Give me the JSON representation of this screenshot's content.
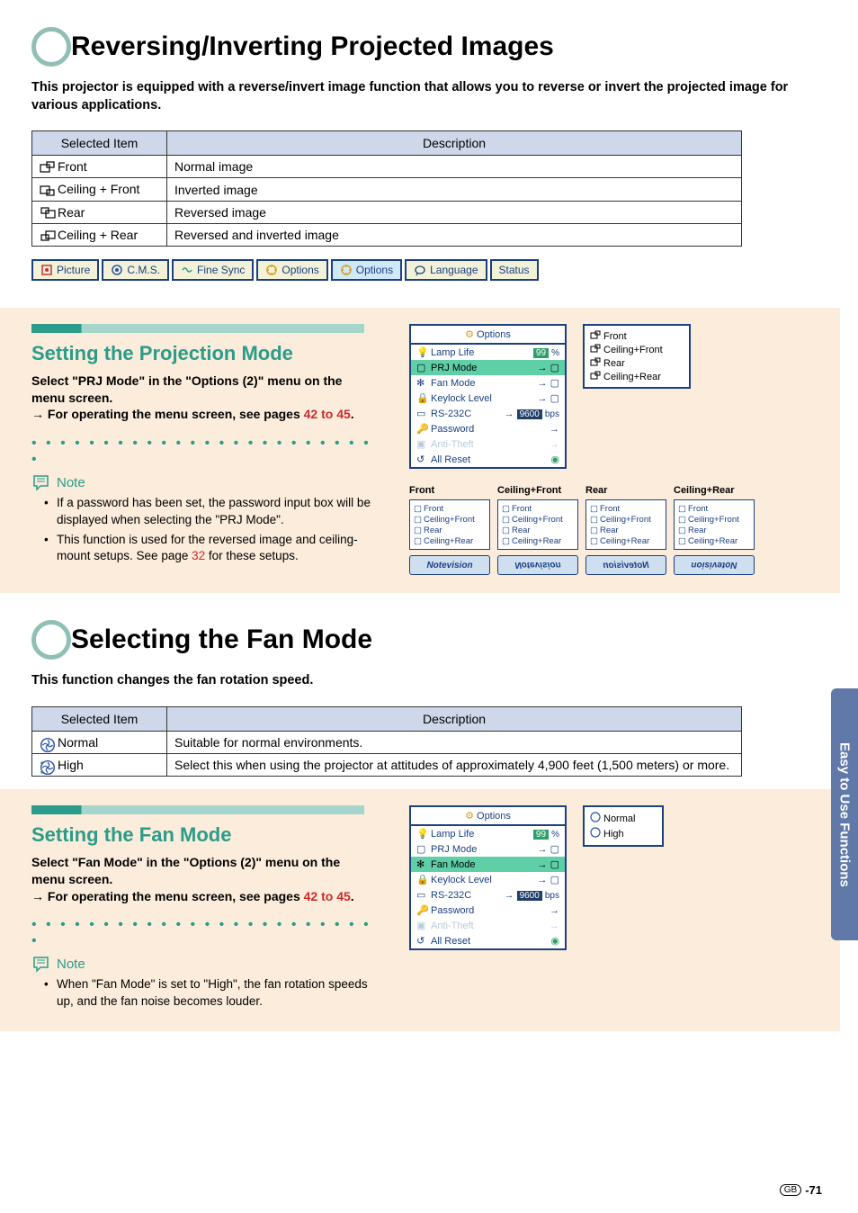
{
  "sideTab": "Easy to Use Functions",
  "pageNum": "-71",
  "gbLabel": "GB",
  "section1": {
    "title": "Reversing/Inverting Projected Images",
    "intro": "This projector is equipped with a reverse/invert image function that allows you to reverse or invert the projected image for various applications.",
    "table": {
      "headers": [
        "Selected Item",
        "Description"
      ],
      "rows": [
        {
          "item": "Front",
          "desc": "Normal image"
        },
        {
          "item": "Ceiling + Front",
          "desc": "Inverted image"
        },
        {
          "item": "Rear",
          "desc": "Reversed image"
        },
        {
          "item": "Ceiling + Rear",
          "desc": "Reversed and inverted image"
        }
      ]
    },
    "menuTabs": [
      "Picture",
      "C.M.S.",
      "Fine Sync",
      "Options",
      "Options",
      "Language",
      "Status"
    ],
    "activeTab": 4,
    "subTitle": "Setting the Projection Mode",
    "instr1": "Select \"PRJ Mode\" in the \"Options (2)\" menu on the menu screen.",
    "instr2a": "→ For operating the menu screen, see pages ",
    "instr2link": "42 to 45",
    "instr2b": ".",
    "noteLabel": "Note",
    "notes": [
      {
        "t": "If a password has been set, the password input box will be displayed when selecting the \"PRJ Mode\"."
      },
      {
        "t1": "This function is used for the reversed image and ceiling-mount setups. See page ",
        "link": "32",
        "t2": " for these setups."
      }
    ],
    "optionsPanel": {
      "title": "Options",
      "rows": [
        {
          "label": "Lamp Life",
          "valType": "badge",
          "val": "99",
          "suffix": "%",
          "color": "#2f9f6a"
        },
        {
          "label": "PRJ Mode",
          "valType": "arrowicon",
          "hl": true
        },
        {
          "label": "Fan Mode",
          "valType": "arrowicon"
        },
        {
          "label": "Keylock Level",
          "valType": "arrowicon"
        },
        {
          "label": "RS-232C",
          "valType": "badgedark",
          "val": "9600",
          "suffix": "bps"
        },
        {
          "label": "Password",
          "valType": "arrow"
        },
        {
          "label": "Anti-Theft",
          "valType": "arrow",
          "dim": true
        },
        {
          "label": "All Reset",
          "valType": "reset"
        }
      ]
    },
    "submenu": [
      "Front",
      "Ceiling+Front",
      "Rear",
      "Ceiling+Rear"
    ],
    "previews": [
      {
        "title": "Front",
        "flip": "",
        "badge": "Notevision"
      },
      {
        "title": "Ceiling+Front",
        "flip": "flip-v",
        "badge": "Notevision"
      },
      {
        "title": "Rear",
        "flip": "flip-h",
        "badge": "Notevision"
      },
      {
        "title": "Ceiling+Rear",
        "flip": "flip-hv",
        "badge": "Notevision"
      }
    ],
    "previewList": [
      "Front",
      "Ceiling+Front",
      "Rear",
      "Ceiling+Rear"
    ]
  },
  "section2": {
    "title": "Selecting the Fan Mode",
    "intro": "This function changes the fan rotation speed.",
    "table": {
      "headers": [
        "Selected Item",
        "Description"
      ],
      "rows": [
        {
          "item": "Normal",
          "desc": "Suitable for normal environments."
        },
        {
          "item": "High",
          "desc": "Select this when using the projector at attitudes of approximately 4,900 feet (1,500 meters) or more."
        }
      ]
    },
    "subTitle": "Setting the Fan Mode",
    "instr1": "Select \"Fan Mode\" in the \"Options (2)\" menu on the menu screen.",
    "instr2a": "→ For operating the menu screen, see pages ",
    "instr2link": "42 to 45",
    "instr2b": ".",
    "noteLabel": "Note",
    "notes": [
      {
        "t": "When \"Fan Mode\" is set to \"High\", the fan rotation speeds up, and the fan noise becomes louder."
      }
    ],
    "optionsPanel": {
      "title": "Options",
      "rows": [
        {
          "label": "Lamp Life",
          "valType": "badge",
          "val": "99",
          "suffix": "%",
          "color": "#2f9f6a"
        },
        {
          "label": "PRJ Mode",
          "valType": "arrowicon"
        },
        {
          "label": "Fan Mode",
          "valType": "arrowicon",
          "hl": true
        },
        {
          "label": "Keylock Level",
          "valType": "arrowicon"
        },
        {
          "label": "RS-232C",
          "valType": "badgedark",
          "val": "9600",
          "suffix": "bps"
        },
        {
          "label": "Password",
          "valType": "arrow"
        },
        {
          "label": "Anti-Theft",
          "valType": "arrow",
          "dim": true
        },
        {
          "label": "All Reset",
          "valType": "reset"
        }
      ]
    },
    "submenu": [
      "Normal",
      "High"
    ]
  },
  "colors": {
    "accent": "#2b9c8a",
    "accentLight": "#a6d5cb",
    "circleBorder": "#8fbfb5",
    "panelBorder": "#1a3f82",
    "tableHeader": "#cfd7ea",
    "twoColBg": "#fbecdb",
    "sideTab": "#6079a8",
    "linkRed": "#cc2b2b"
  }
}
